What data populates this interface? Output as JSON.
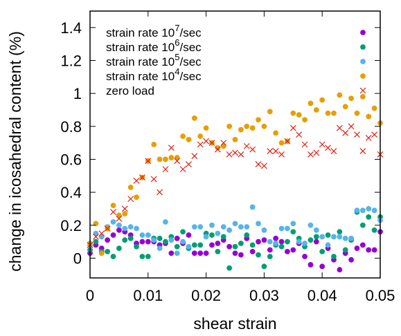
{
  "chart_data": {
    "type": "scatter",
    "title": "",
    "xlabel": "shear strain",
    "ylabel": "change in icosahedral content (%)",
    "xlim": [
      0,
      0.05
    ],
    "ylim": [
      -0.12,
      1.5
    ],
    "xticks": [
      0,
      0.01,
      0.02,
      0.03,
      0.04,
      0.05
    ],
    "xtick_labels": [
      "0",
      "0.01",
      "0.02",
      "0.03",
      "0.04",
      "0.05"
    ],
    "yticks": [
      0,
      0.2,
      0.4,
      0.6,
      0.8,
      1,
      1.2,
      1.4
    ],
    "ytick_labels": [
      "0",
      "0.2",
      "0.4",
      "0.6",
      "0.8",
      "1",
      "1.2",
      "1.4"
    ],
    "grid": false,
    "legend_position": "top-right",
    "series": [
      {
        "name": "strain rate 10^7/sec",
        "legend": {
          "prefix": "strain rate 10",
          "sup": "7",
          "suffix": "/sec"
        },
        "marker": "circle",
        "color": "#9400d3",
        "x": [
          0.0,
          0.001,
          0.002,
          0.003,
          0.004,
          0.005,
          0.006,
          0.007,
          0.008,
          0.009,
          0.01,
          0.011,
          0.012,
          0.013,
          0.014,
          0.015,
          0.016,
          0.017,
          0.018,
          0.019,
          0.02,
          0.021,
          0.022,
          0.023,
          0.024,
          0.025,
          0.026,
          0.027,
          0.028,
          0.029,
          0.03,
          0.031,
          0.032,
          0.033,
          0.034,
          0.035,
          0.036,
          0.037,
          0.038,
          0.039,
          0.04,
          0.041,
          0.042,
          0.043,
          0.044,
          0.045,
          0.046,
          0.047,
          0.048,
          0.049,
          0.05
        ],
        "y": [
          0.03,
          0.08,
          0.06,
          0.11,
          0.14,
          0.17,
          0.16,
          0.14,
          0.09,
          0.1,
          0.1,
          0.1,
          0.08,
          0.09,
          0.03,
          0.12,
          0.09,
          0.14,
          0.03,
          0.03,
          0.03,
          0.08,
          0.09,
          0.11,
          0.07,
          0.03,
          0.02,
          0.12,
          0.04,
          0.1,
          0.11,
          0.05,
          0.12,
          0.1,
          0.04,
          0.05,
          0.09,
          0.01,
          -0.04,
          0.1,
          -0.05,
          0.06,
          -0.01,
          -0.07,
          0.03,
          -0.01,
          0.06,
          0.08,
          0.05,
          0.05,
          0.16
        ]
      },
      {
        "name": "strain rate 10^6/sec",
        "legend": {
          "prefix": "strain rate 10",
          "sup": "6",
          "suffix": "/sec"
        },
        "marker": "circle",
        "color": "#009e73",
        "x": [
          0.0,
          0.001,
          0.002,
          0.003,
          0.004,
          0.005,
          0.006,
          0.007,
          0.008,
          0.009,
          0.01,
          0.011,
          0.012,
          0.013,
          0.014,
          0.015,
          0.016,
          0.017,
          0.018,
          0.019,
          0.02,
          0.021,
          0.022,
          0.023,
          0.024,
          0.025,
          0.026,
          0.027,
          0.028,
          0.029,
          0.03,
          0.031,
          0.032,
          0.033,
          0.034,
          0.035,
          0.036,
          0.037,
          0.038,
          0.039,
          0.04,
          0.041,
          0.042,
          0.043,
          0.044,
          0.045,
          0.046,
          0.047,
          0.048,
          0.049,
          0.05
        ],
        "y": [
          0.05,
          0.1,
          0.04,
          0.04,
          0.01,
          0.06,
          0.11,
          0.12,
          0.07,
          0.01,
          0.01,
          0.12,
          0.12,
          0.1,
          0.13,
          0.07,
          0.16,
          0.06,
          0.08,
          0.08,
          0.15,
          0.14,
          0.04,
          0.13,
          -0.06,
          0.07,
          0.09,
          0.14,
          0.08,
          0.02,
          -0.05,
          0.01,
          0.08,
          0.07,
          0.1,
          0.16,
          0.12,
          0.07,
          0.11,
          0.13,
          0.04,
          0.14,
          0.01,
          0.16,
          0.05,
          0.11,
          0.28,
          0.2,
          0.25,
          0.17,
          0.25
        ]
      },
      {
        "name": "strain rate 10^5/sec",
        "legend": {
          "prefix": "strain rate 10",
          "sup": "5",
          "suffix": "/sec"
        },
        "marker": "circle",
        "color": "#56b4e9",
        "x": [
          0.0,
          0.001,
          0.002,
          0.003,
          0.004,
          0.005,
          0.006,
          0.007,
          0.008,
          0.009,
          0.01,
          0.011,
          0.012,
          0.013,
          0.014,
          0.015,
          0.016,
          0.017,
          0.018,
          0.019,
          0.02,
          0.021,
          0.022,
          0.023,
          0.024,
          0.025,
          0.026,
          0.027,
          0.028,
          0.029,
          0.03,
          0.031,
          0.032,
          0.033,
          0.034,
          0.035,
          0.036,
          0.037,
          0.038,
          0.039,
          0.04,
          0.041,
          0.042,
          0.043,
          0.044,
          0.045,
          0.046,
          0.047,
          0.048,
          0.049,
          0.05
        ],
        "y": [
          0.08,
          0.15,
          0.13,
          0.19,
          0.22,
          0.2,
          0.18,
          0.19,
          0.18,
          0.14,
          0.14,
          0.11,
          0.06,
          0.22,
          0.11,
          0.03,
          0.1,
          0.07,
          0.19,
          0.19,
          0.13,
          0.2,
          0.15,
          0.19,
          0.17,
          0.21,
          0.19,
          0.19,
          0.31,
          0.21,
          0.17,
          0.1,
          0.09,
          0.18,
          0.18,
          0.21,
          0.1,
          0.09,
          0.2,
          0.17,
          0.13,
          0.08,
          0.13,
          0.13,
          0.12,
          0.12,
          0.29,
          0.29,
          0.3,
          0.29,
          0.23
        ]
      },
      {
        "name": "strain rate 10^4/sec",
        "legend": {
          "prefix": "strain rate 10",
          "sup": "4",
          "suffix": "/sec"
        },
        "marker": "circle",
        "color": "#e69f00",
        "x": [
          0.0,
          0.001,
          0.002,
          0.003,
          0.004,
          0.005,
          0.006,
          0.007,
          0.008,
          0.009,
          0.01,
          0.011,
          0.012,
          0.013,
          0.014,
          0.015,
          0.016,
          0.017,
          0.018,
          0.019,
          0.02,
          0.021,
          0.022,
          0.023,
          0.024,
          0.025,
          0.026,
          0.027,
          0.028,
          0.029,
          0.03,
          0.031,
          0.032,
          0.033,
          0.034,
          0.035,
          0.036,
          0.037,
          0.038,
          0.039,
          0.04,
          0.041,
          0.042,
          0.043,
          0.044,
          0.045,
          0.046,
          0.047,
          0.048,
          0.049,
          0.05
        ],
        "y": [
          0.09,
          0.21,
          0.03,
          0.18,
          0.32,
          0.26,
          0.27,
          0.43,
          0.37,
          0.49,
          0.59,
          0.69,
          0.6,
          0.6,
          0.61,
          0.61,
          0.74,
          0.72,
          0.85,
          0.74,
          0.79,
          0.7,
          0.67,
          0.68,
          0.8,
          0.72,
          0.78,
          0.8,
          0.79,
          0.84,
          0.8,
          0.89,
          0.76,
          0.7,
          0.71,
          0.88,
          0.87,
          0.84,
          0.94,
          0.9,
          0.96,
          0.88,
          0.88,
          0.99,
          0.92,
          0.97,
          0.88,
          0.98,
          0.86,
          0.91,
          0.82
        ]
      },
      {
        "name": "zero load",
        "legend": {
          "prefix": "zero load",
          "sup": "",
          "suffix": ""
        },
        "marker": "cross",
        "color": "#e51e10",
        "x": [
          0.0,
          0.001,
          0.002,
          0.003,
          0.004,
          0.005,
          0.006,
          0.007,
          0.008,
          0.009,
          0.01,
          0.011,
          0.012,
          0.013,
          0.014,
          0.015,
          0.016,
          0.017,
          0.018,
          0.019,
          0.02,
          0.021,
          0.022,
          0.023,
          0.024,
          0.025,
          0.026,
          0.027,
          0.028,
          0.029,
          0.03,
          0.031,
          0.032,
          0.033,
          0.034,
          0.035,
          0.036,
          0.037,
          0.038,
          0.039,
          0.04,
          0.041,
          0.042,
          0.043,
          0.044,
          0.045,
          0.046,
          0.047,
          0.048,
          0.049,
          0.05
        ],
        "y": [
          0.08,
          0.13,
          0.15,
          0.18,
          0.28,
          0.24,
          0.3,
          0.36,
          0.47,
          0.49,
          0.59,
          0.48,
          0.4,
          0.54,
          0.67,
          0.59,
          0.54,
          0.57,
          0.62,
          0.69,
          0.71,
          0.7,
          0.66,
          0.7,
          0.63,
          0.64,
          0.63,
          0.68,
          0.66,
          0.57,
          0.56,
          0.65,
          0.65,
          0.63,
          0.71,
          0.79,
          0.75,
          0.69,
          0.63,
          0.64,
          0.69,
          0.67,
          0.65,
          0.79,
          0.76,
          0.8,
          0.75,
          0.65,
          0.73,
          0.75,
          0.63
        ]
      }
    ]
  }
}
